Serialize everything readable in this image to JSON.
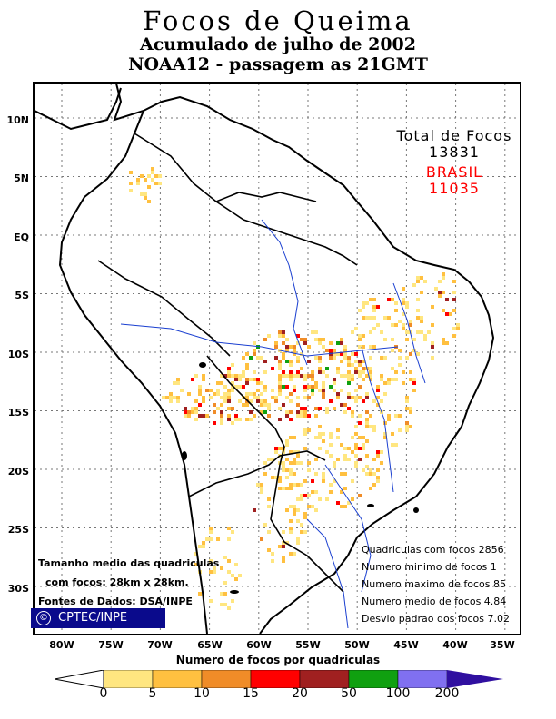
{
  "header": {
    "title": "Focos de Queima",
    "subtitle1": "Acumulado de julho de 2002",
    "subtitle2": "NOAA12 - passagem as 21GMT"
  },
  "axes": {
    "lat_labels": [
      "10N",
      "5N",
      "EQ",
      "5S",
      "10S",
      "15S",
      "20S",
      "25S",
      "30S"
    ],
    "lon_labels": [
      "80W",
      "75W",
      "70W",
      "65W",
      "60W",
      "55W",
      "50W",
      "45W",
      "40W",
      "35W"
    ],
    "xtitle": "Numero de focos por quadriculas"
  },
  "totals": {
    "label": "Total de Focos",
    "total": "13831",
    "region_label": "BRASIL",
    "region_total": "11035",
    "region_color": "#ff0000"
  },
  "stats": {
    "line1": "Quadriculas com focos 2856",
    "line2": "Numero minimo de focos 1",
    "line3": "Numero maximo de focos 85",
    "line4": "Numero medio de focos 4.84",
    "line5": "Desvio padrao dos focos 7.02"
  },
  "notes": {
    "line1": "Tamanho medio das quadriculas",
    "line2": "com focos: 28km x 28km.",
    "line3": "Fontes de Dados: DSA/INPE"
  },
  "logo": {
    "symbol": "©",
    "text": "CPTEC/INPE",
    "color": "#0a0a8c"
  },
  "colorbar": {
    "labels": [
      "0",
      "5",
      "10",
      "15",
      "20",
      "50",
      "100",
      "200"
    ],
    "colors": [
      "#ffe680",
      "#ffc040",
      "#f08c28",
      "#ff0000",
      "#a02020",
      "#10a010",
      "#8070f0"
    ],
    "under_color": "#ffffff",
    "over_color": "#3010a0"
  },
  "legend_colors": {
    "land_outline": "#000000",
    "rivers": "#1a3fd0",
    "grid": "#777777"
  }
}
